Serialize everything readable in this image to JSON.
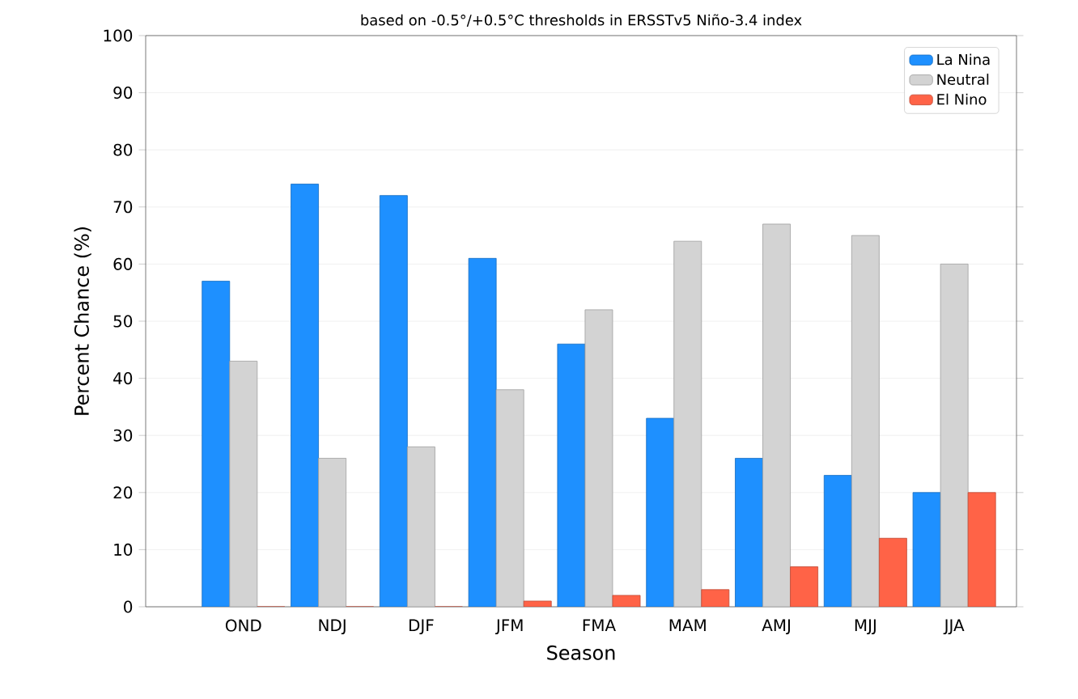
{
  "chart_data": {
    "type": "bar",
    "title": "based on -0.5°/+0.5°C thresholds in ERSSTv5 Niño-3.4 index",
    "xlabel": "Season",
    "ylabel": "Percent Chance (%)",
    "categories": [
      "OND",
      "NDJ",
      "DJF",
      "JFM",
      "FMA",
      "MAM",
      "AMJ",
      "MJJ",
      "JJA"
    ],
    "series": [
      {
        "name": "La Nina",
        "color": "#1e90ff",
        "values": [
          57,
          74,
          72,
          61,
          46,
          33,
          26,
          23,
          20
        ]
      },
      {
        "name": "Neutral",
        "color": "#d3d3d3",
        "values": [
          43,
          26,
          28,
          38,
          52,
          64,
          67,
          65,
          60
        ]
      },
      {
        "name": "El Nino",
        "color": "#ff6347",
        "values": [
          0,
          0,
          0,
          1,
          2,
          3,
          7,
          12,
          20
        ]
      }
    ],
    "ylim": [
      0,
      100
    ],
    "yticks": [
      0,
      10,
      20,
      30,
      40,
      50,
      60,
      70,
      80,
      90,
      100
    ],
    "grid": "y",
    "legend": "top right"
  }
}
